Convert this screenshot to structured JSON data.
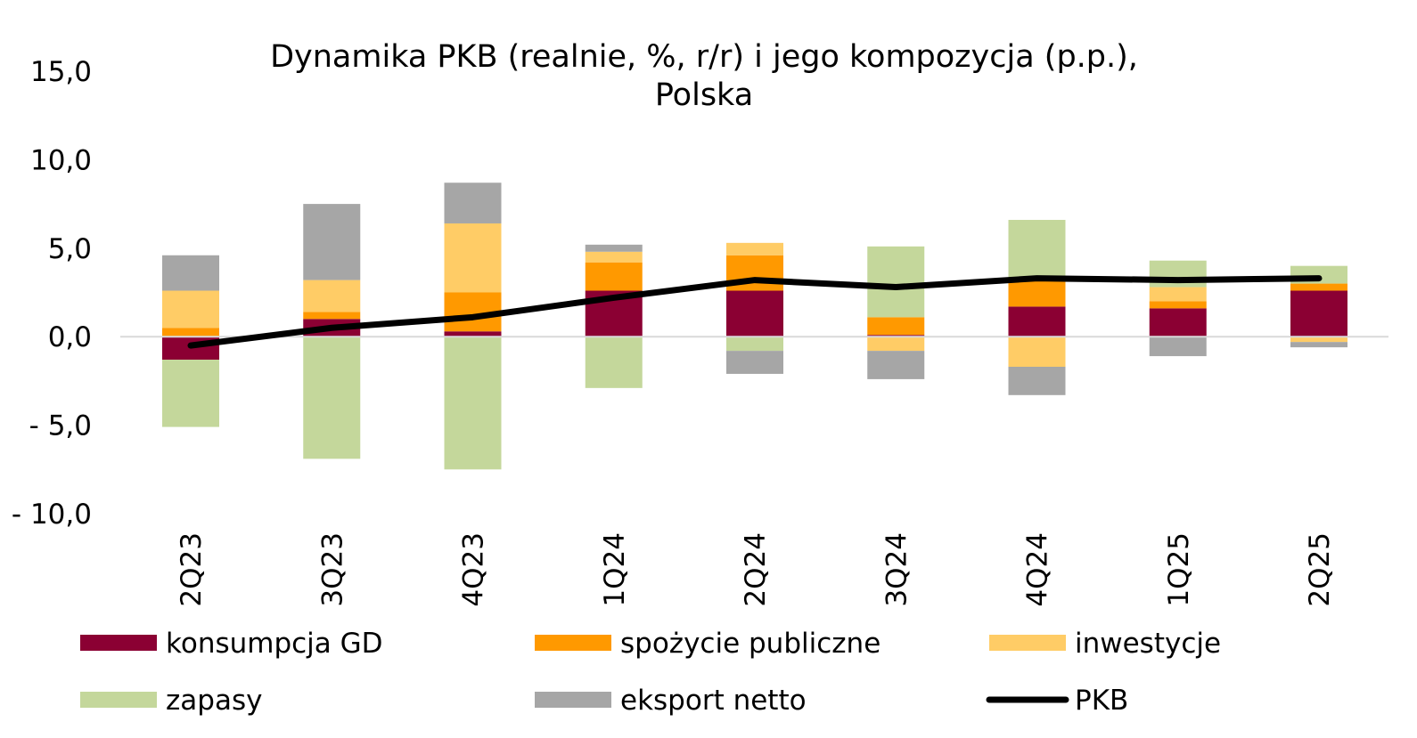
{
  "chart_data": {
    "type": "bar",
    "stacked": true,
    "title_lines": [
      "Dynamika PKB (realnie, %, r/r) i jego kompozycja (p.p.),",
      "Polska"
    ],
    "categories": [
      "2Q23",
      "3Q23",
      "4Q23",
      "1Q24",
      "2Q24",
      "3Q24",
      "4Q24",
      "1Q25",
      "2Q25"
    ],
    "ylim": [
      -10,
      15
    ],
    "yticks": [
      15,
      10,
      5,
      0,
      -5,
      -10
    ],
    "ytick_labels": [
      "15,0",
      "10,0",
      "5,0",
      "0,0",
      "- 5,0",
      "- 10,0"
    ],
    "grid": false,
    "legend_position": "bottom",
    "series": [
      {
        "name": "konsumpcja GD",
        "color": "#8B0033",
        "values": [
          -1.3,
          1.0,
          0.3,
          2.6,
          2.6,
          0.1,
          1.7,
          1.6,
          2.6
        ]
      },
      {
        "name": "spożycie publiczne",
        "color": "#FF9900",
        "values": [
          0.5,
          0.4,
          2.2,
          1.6,
          2.0,
          1.0,
          1.6,
          0.4,
          0.4
        ]
      },
      {
        "name": "inwestycje",
        "color": "#FFCC66",
        "values": [
          2.1,
          1.8,
          3.9,
          0.6,
          0.7,
          -0.8,
          -1.7,
          0.8,
          -0.3
        ]
      },
      {
        "name": "zapasy",
        "color": "#C4D79B",
        "values": [
          -3.8,
          -6.9,
          -7.5,
          -2.9,
          -0.8,
          4.0,
          3.3,
          1.5,
          1.0
        ]
      },
      {
        "name": "eksport netto",
        "color": "#A6A6A6",
        "values": [
          2.0,
          4.3,
          2.3,
          0.4,
          -1.3,
          -1.6,
          -1.6,
          -1.1,
          -0.3
        ]
      }
    ],
    "line_series": {
      "name": "PKB",
      "color": "#000000",
      "values": [
        -0.5,
        0.5,
        1.1,
        2.2,
        3.2,
        2.8,
        3.3,
        3.2,
        3.3
      ]
    }
  }
}
